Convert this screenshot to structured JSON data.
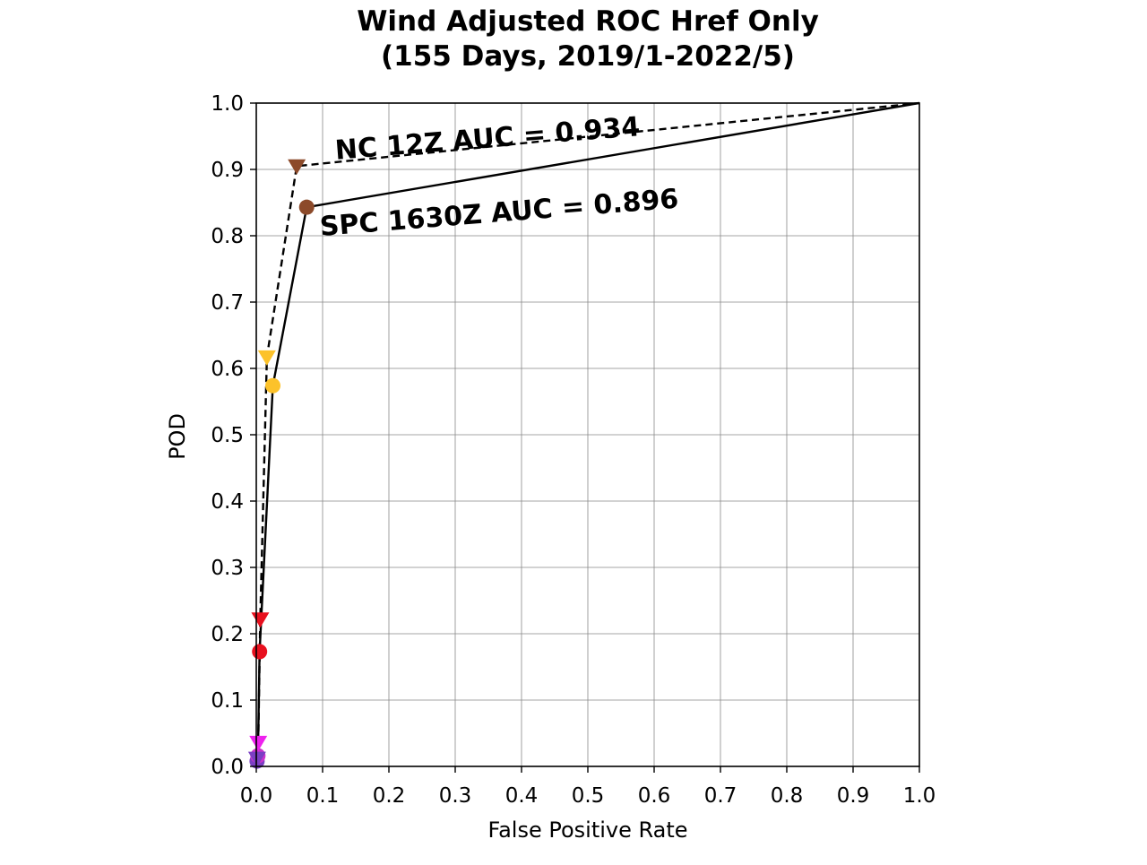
{
  "chart_data": {
    "type": "line",
    "title": [
      "Wind Adjusted ROC Href Only",
      "(155 Days, 2019/1-2022/5)"
    ],
    "xlabel": "False Positive Rate",
    "ylabel": "POD",
    "xlim": [
      0.0,
      1.0
    ],
    "ylim": [
      0.0,
      1.0
    ],
    "xticks": [
      "0.0",
      "0.1",
      "0.2",
      "0.3",
      "0.4",
      "0.5",
      "0.6",
      "0.7",
      "0.8",
      "0.9",
      "1.0"
    ],
    "yticks": [
      "0.0",
      "0.1",
      "0.2",
      "0.3",
      "0.4",
      "0.5",
      "0.6",
      "0.7",
      "0.8",
      "0.9",
      "1.0"
    ],
    "grid": true,
    "legend": "none",
    "series": [
      {
        "label": "SPC 1630Z AUC = 0.896",
        "line_style": "solid",
        "marker": "circle",
        "x": [
          0.0,
          0.0012,
          0.0025,
          0.005,
          0.025,
          0.076,
          1.0
        ],
        "y": [
          0.0,
          0.008,
          0.016,
          0.173,
          0.574,
          0.843,
          1.0
        ],
        "point_colors": [
          "",
          "#7b3fc4",
          "#cc33cc",
          "#e8101e",
          "#fcc22a",
          "#8c4a2a",
          ""
        ]
      },
      {
        "label": "NC 12Z AUC = 0.934",
        "line_style": "dashed",
        "marker": "triangle-down",
        "x": [
          0.0,
          0.0012,
          0.003,
          0.006,
          0.016,
          0.061,
          1.0
        ],
        "y": [
          0.0,
          0.012,
          0.036,
          0.222,
          0.617,
          0.905,
          1.0
        ],
        "point_colors": [
          "",
          "#7b3fc4",
          "#ee22ee",
          "#e8101e",
          "#fcc22a",
          "#8c4a2a",
          ""
        ]
      }
    ],
    "annotations": [
      {
        "text": "NC 12Z AUC = 0.934",
        "x": 0.12,
        "y": 0.915
      },
      {
        "text": "SPC 1630Z AUC = 0.896",
        "x": 0.097,
        "y": 0.8
      }
    ]
  }
}
